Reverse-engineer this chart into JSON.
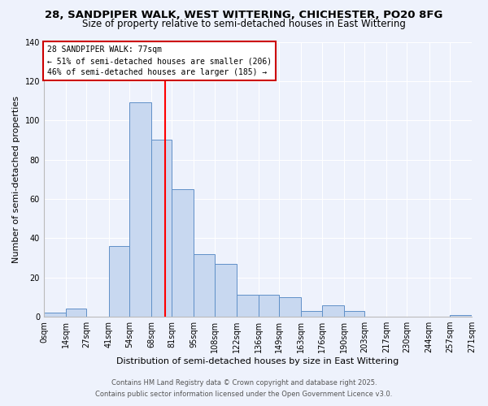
{
  "title": "28, SANDPIPER WALK, WEST WITTERING, CHICHESTER, PO20 8FG",
  "subtitle": "Size of property relative to semi-detached houses in East Wittering",
  "xlabel": "Distribution of semi-detached houses by size in East Wittering",
  "ylabel": "Number of semi-detached properties",
  "bar_color": "#c8d8f0",
  "bar_edge_color": "#6090c8",
  "bin_edges": [
    0,
    14,
    27,
    41,
    54,
    68,
    81,
    95,
    108,
    122,
    136,
    149,
    163,
    176,
    190,
    203,
    217,
    230,
    244,
    257,
    271
  ],
  "bin_labels": [
    "0sqm",
    "14sqm",
    "27sqm",
    "41sqm",
    "54sqm",
    "68sqm",
    "81sqm",
    "95sqm",
    "108sqm",
    "122sqm",
    "136sqm",
    "149sqm",
    "163sqm",
    "176sqm",
    "190sqm",
    "203sqm",
    "217sqm",
    "230sqm",
    "244sqm",
    "257sqm",
    "271sqm"
  ],
  "counts": [
    2,
    4,
    0,
    36,
    109,
    90,
    65,
    32,
    27,
    11,
    11,
    10,
    3,
    6,
    3,
    0,
    0,
    0,
    0,
    1
  ],
  "vline_x": 77,
  "ylim": [
    0,
    140
  ],
  "yticks": [
    0,
    20,
    40,
    60,
    80,
    100,
    120,
    140
  ],
  "annotation_title": "28 SANDPIPER WALK: 77sqm",
  "annotation_line1": "← 51% of semi-detached houses are smaller (206)",
  "annotation_line2": "46% of semi-detached houses are larger (185) →",
  "annotation_box_color": "#ffffff",
  "annotation_box_edge": "#cc0000",
  "footnote1": "Contains HM Land Registry data © Crown copyright and database right 2025.",
  "footnote2": "Contains public sector information licensed under the Open Government Licence v3.0.",
  "background_color": "#eef2fc",
  "title_fontsize": 9.5,
  "subtitle_fontsize": 8.5,
  "axis_label_fontsize": 8,
  "tick_fontsize": 7,
  "footnote_fontsize": 6,
  "annotation_fontsize": 7
}
